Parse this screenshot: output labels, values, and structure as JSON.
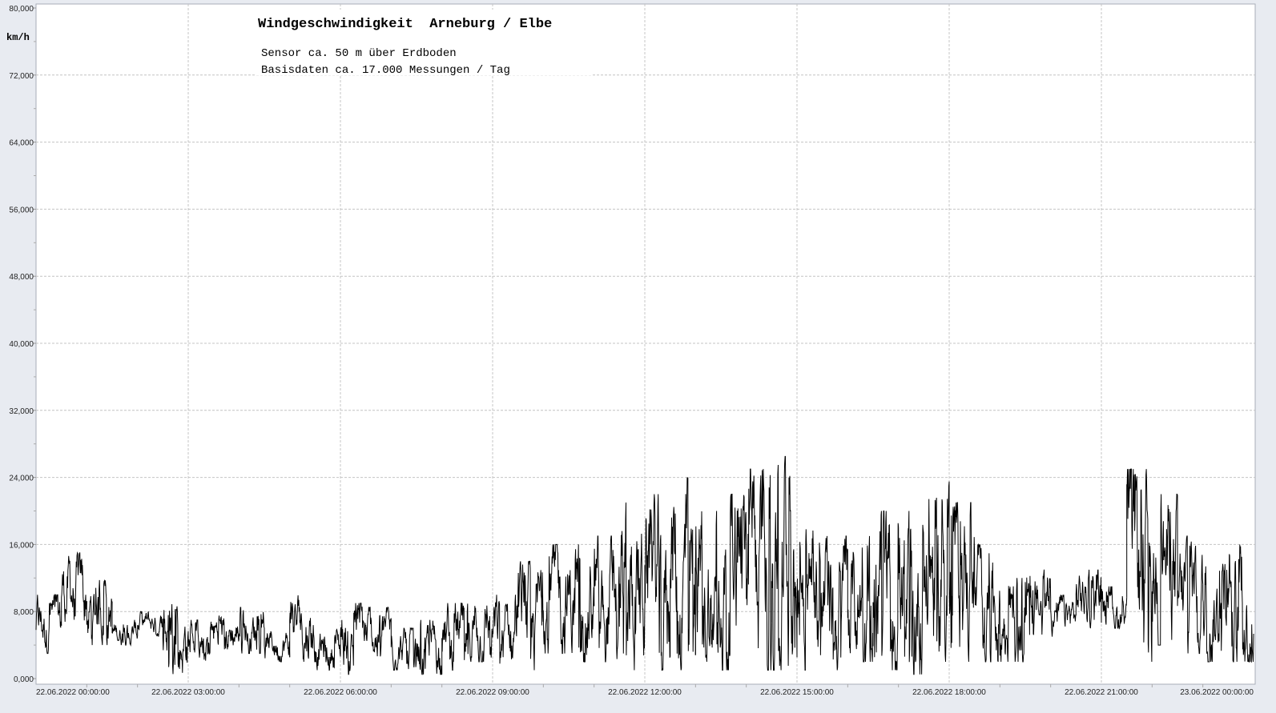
{
  "chart_data": {
    "type": "line",
    "title": "Windgeschwindigkeit  Arneburg / Elbe",
    "subtitle_lines": [
      "Sensor ca. 50 m über Erdboden",
      "Basisdaten ca. 17.000 Messungen / Tag"
    ],
    "ylabel": "km/h",
    "xlabel": "",
    "ylim": [
      0,
      80
    ],
    "yticks": [
      "0,000",
      "8,000",
      "16,000",
      "24,000",
      "32,000",
      "40,000",
      "48,000",
      "56,000",
      "64,000",
      "72,000",
      "80,000"
    ],
    "xlim_hours": [
      0,
      24
    ],
    "xticks": [
      "22.06.2022  00:00:00",
      "22.06.2022  03:00:00",
      "22.06.2022  06:00:00",
      "22.06.2022  09:00:00",
      "22.06.2022  12:00:00",
      "22.06.2022  15:00:00",
      "22.06.2022  18:00:00",
      "22.06.2022  21:00:00",
      "23.06.2022  00:00:00"
    ],
    "grid": true,
    "line_color": "#000000",
    "series": [
      {
        "interval_minutes": 30,
        "min": [
          3,
          6,
          4,
          4,
          5,
          0.5,
          2,
          3,
          3,
          2,
          2,
          1,
          0.5,
          2,
          1,
          0.5,
          1,
          2,
          1,
          1,
          3,
          2,
          2,
          1,
          1,
          1,
          2,
          1,
          1,
          1,
          1,
          1,
          2,
          1,
          0.5,
          2,
          2,
          2,
          2,
          4,
          5,
          6,
          6,
          2,
          4,
          3,
          2,
          2
        ],
        "max": [
          10,
          15,
          12,
          7,
          8,
          9,
          7,
          8,
          8.5,
          6,
          10,
          6,
          9,
          8.5,
          6,
          7,
          9,
          10,
          10,
          14,
          16,
          16,
          17,
          21,
          22,
          24,
          20,
          22,
          25,
          26.5,
          18,
          17,
          17,
          20,
          20,
          23.5,
          21,
          16,
          12,
          13,
          10,
          13,
          11,
          25,
          22,
          17,
          14,
          16
        ]
      }
    ]
  }
}
